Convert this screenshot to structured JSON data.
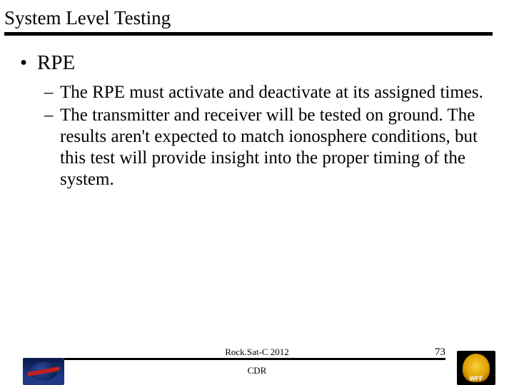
{
  "title": "System Level Testing",
  "bullets": {
    "l1_0": {
      "marker": "•",
      "text": "RPE"
    },
    "l2_0": {
      "marker": "–",
      "text": "The RPE must activate and deactivate at its assigned times."
    },
    "l2_1": {
      "marker": "–",
      "text": "The transmitter and receiver will be tested on ground. The results aren't expected to match ionosphere conditions, but this test will provide insight into the proper timing of the system."
    }
  },
  "footer": {
    "line1": "Rock.Sat-C 2012",
    "line2": "CDR",
    "page": "73",
    "right_logo_label": "WFF"
  },
  "colors": {
    "text": "#000000",
    "background": "#ffffff",
    "rule": "#000000"
  }
}
